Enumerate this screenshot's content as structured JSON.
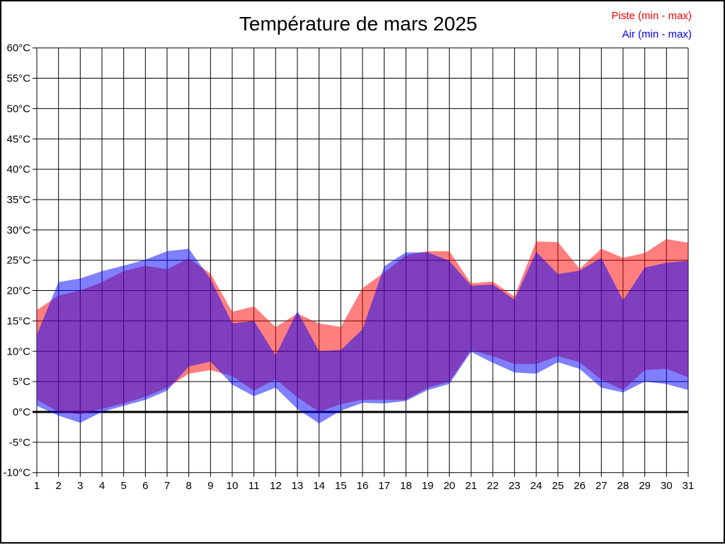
{
  "title": "Température de mars 2025",
  "legend": [
    {
      "label": "Piste (min - max)",
      "color": "#ff0000"
    },
    {
      "label": "Air (min - max)",
      "color": "#0000ff"
    }
  ],
  "chart_data": {
    "type": "area",
    "subtype": "min-max range bands, overlapping translucent fills",
    "title": "Température de mars 2025",
    "xlabel": "",
    "ylabel": "",
    "x": [
      1,
      2,
      3,
      4,
      5,
      6,
      7,
      8,
      9,
      10,
      11,
      12,
      13,
      14,
      15,
      16,
      17,
      18,
      19,
      20,
      21,
      22,
      23,
      24,
      25,
      26,
      27,
      28,
      29,
      30,
      31
    ],
    "ylim": [
      -10,
      60
    ],
    "ytick_step": 5,
    "ytick_suffix": "°C",
    "grid": true,
    "zero_line": true,
    "legend_position": "top-right",
    "series": [
      {
        "name": "Piste (min - max)",
        "color": "#ff0000",
        "fill": "rgba(255,0,0,0.5)",
        "min": [
          2,
          0,
          -0.4,
          0.5,
          1.4,
          2.5,
          4,
          6.3,
          6.9,
          5.9,
          3.5,
          5.4,
          2.4,
          0,
          1.3,
          2,
          2,
          2,
          4,
          5,
          10.2,
          9.2,
          7.9,
          7.9,
          9.2,
          8.2,
          5.3,
          3.6,
          6.9,
          7.1,
          5.7
        ],
        "max": [
          16.8,
          19.2,
          20,
          21.4,
          23.2,
          24.1,
          23.5,
          25.3,
          22.8,
          16.5,
          17.4,
          14,
          16.2,
          14.6,
          14,
          20.4,
          23,
          25.8,
          26.5,
          26.5,
          21.2,
          21.5,
          19,
          28.1,
          28,
          23.6,
          26.9,
          25.4,
          26.2,
          28.5,
          27.9
        ]
      },
      {
        "name": "Air (min - max)",
        "color": "#0000ff",
        "fill": "rgba(0,0,255,0.5)",
        "min": [
          1,
          -0.6,
          -1.8,
          0,
          1,
          2,
          3.5,
          7.5,
          8.3,
          4.5,
          2.6,
          4,
          0.5,
          -1.9,
          0.2,
          1.5,
          1.4,
          1.8,
          3.6,
          4.6,
          9.9,
          8.1,
          6.5,
          6.3,
          8.2,
          7.1,
          4,
          3.2,
          5,
          4.6,
          3.6
        ],
        "max": [
          12.7,
          21.4,
          22,
          23.2,
          24.1,
          25.1,
          26.5,
          26.9,
          21.9,
          14.6,
          15,
          9.3,
          16.6,
          10,
          10.2,
          13.6,
          24,
          26.3,
          26.3,
          24.9,
          20.8,
          21,
          18.5,
          26.4,
          22.7,
          23.3,
          25.4,
          18.4,
          23.8,
          24.6,
          24.9
        ]
      }
    ]
  }
}
